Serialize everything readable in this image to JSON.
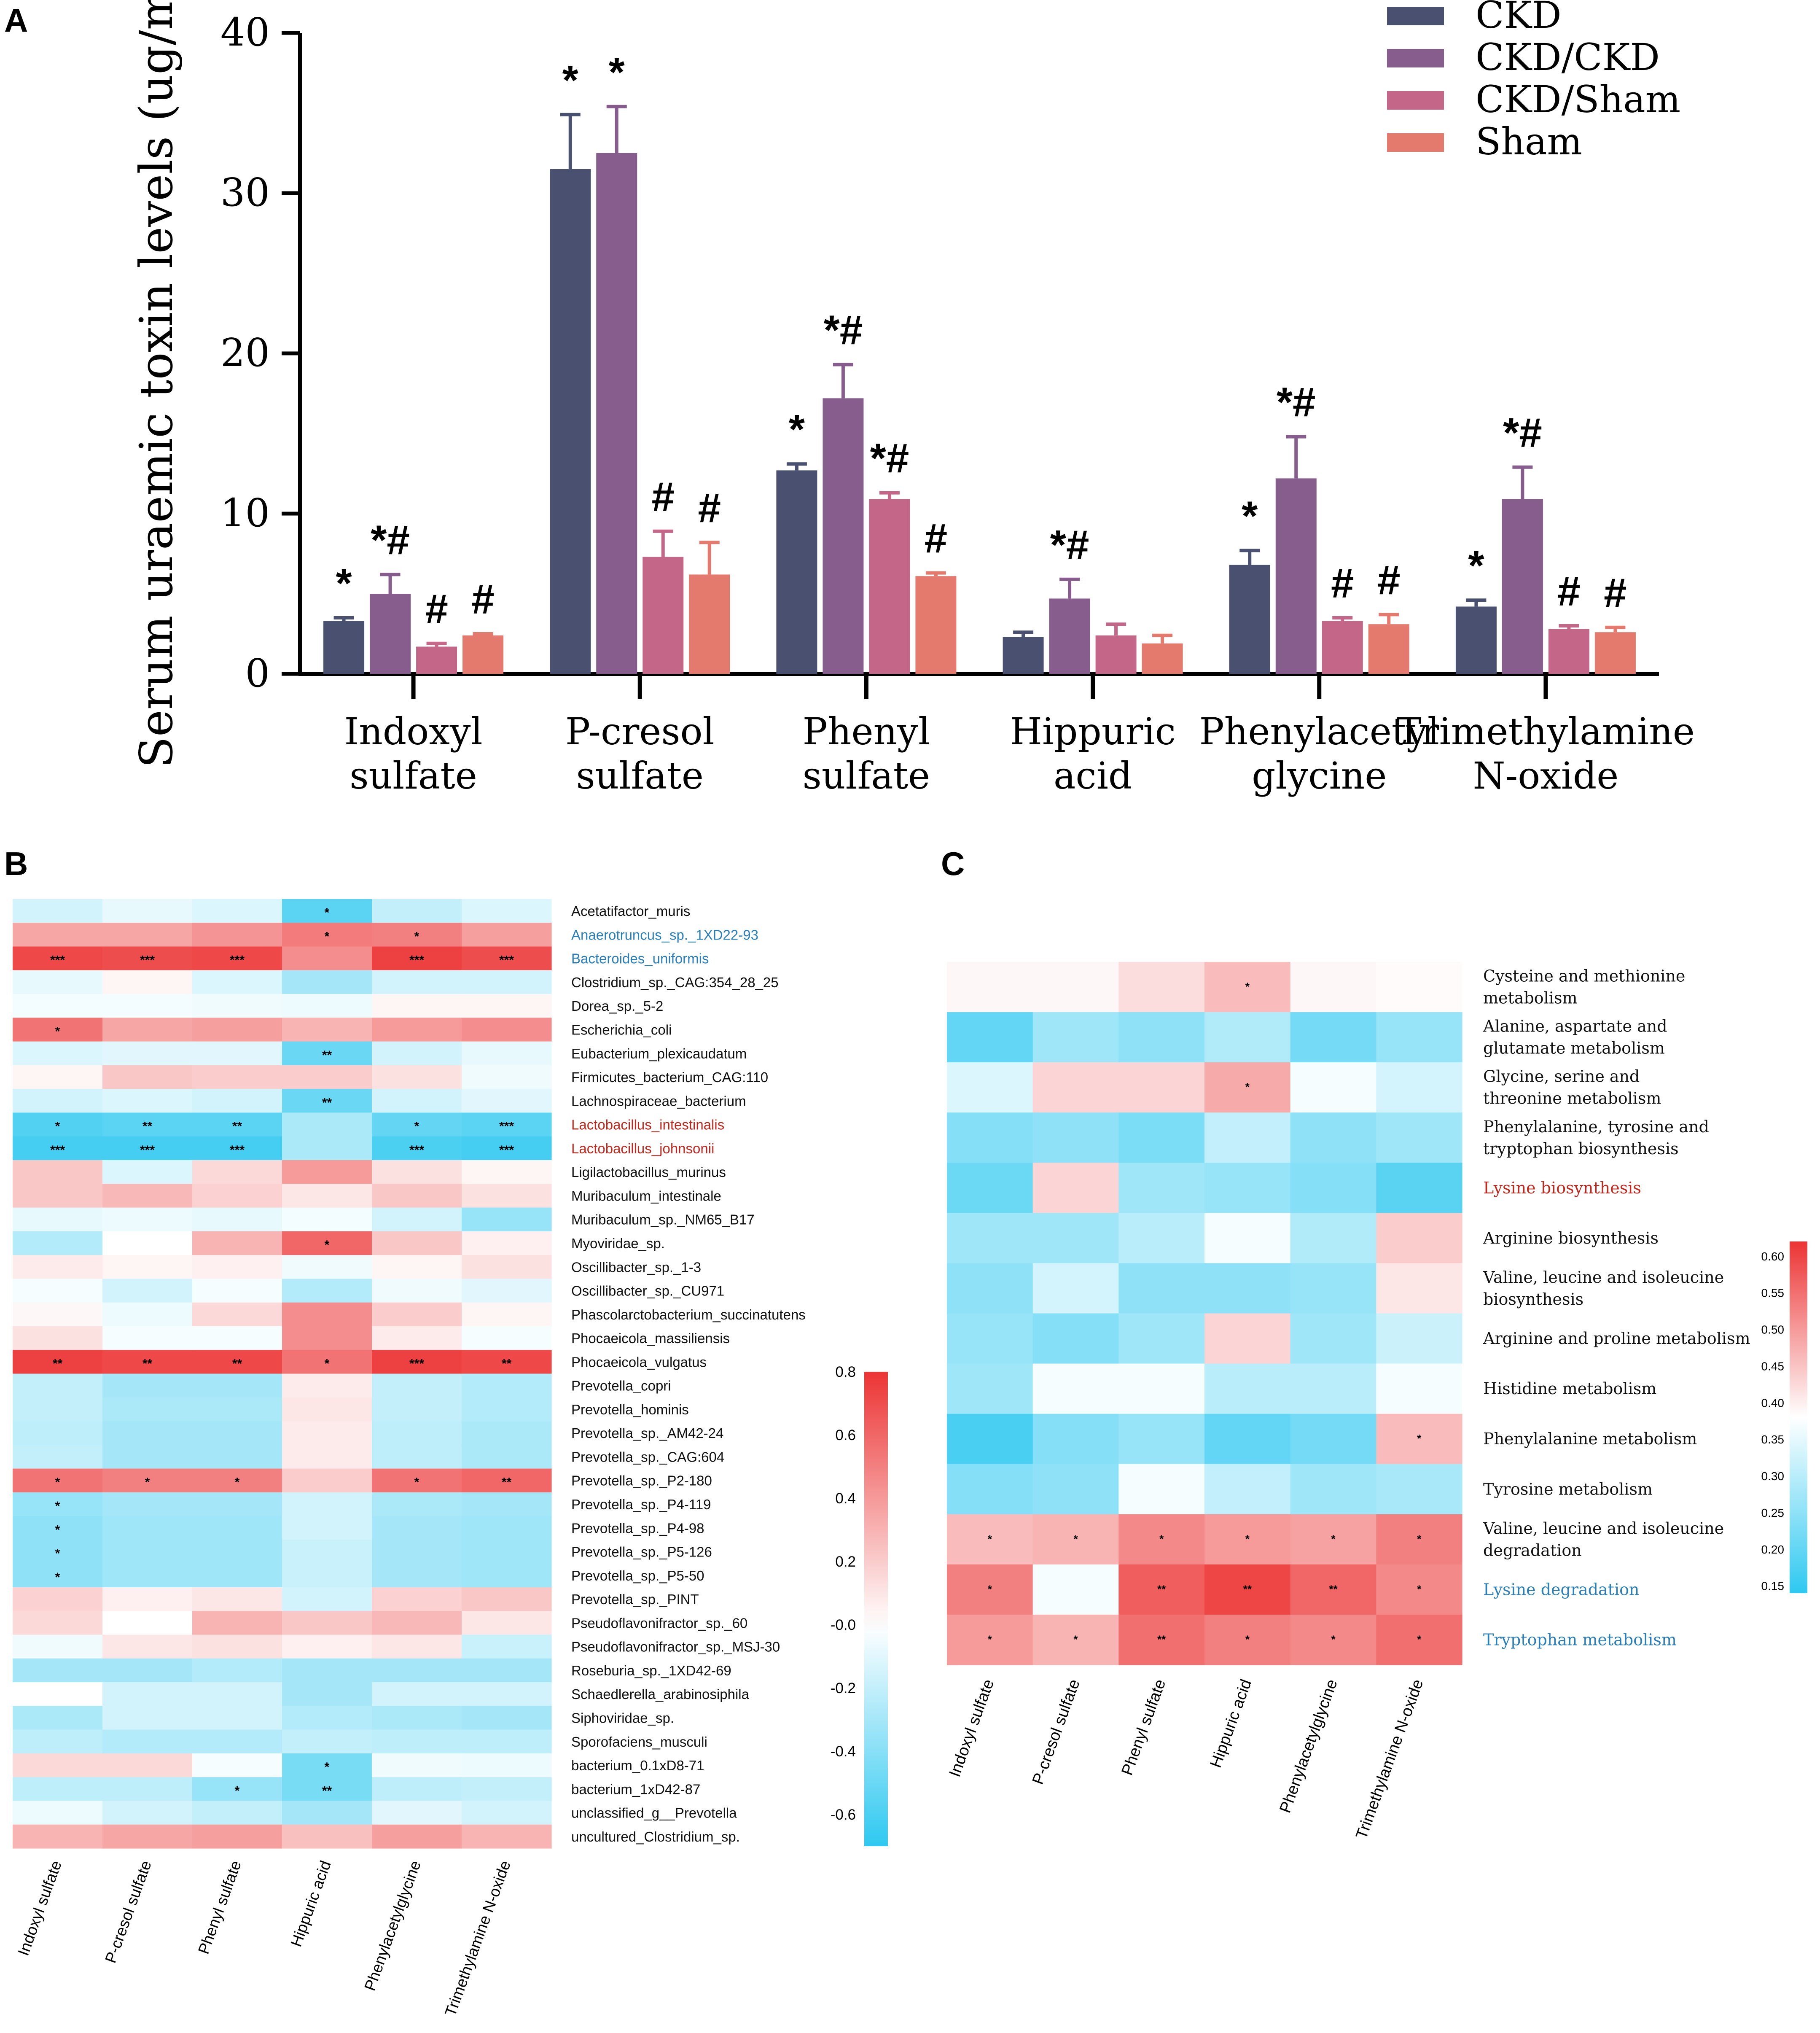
{
  "chart_data": [
    {
      "panel": "A",
      "type": "bar",
      "title": "",
      "xlabel": "",
      "ylabel": "Serum uraemic toxin levels (ug/mL)",
      "ylim": [
        0,
        40
      ],
      "yticks": [
        "0",
        "10",
        "20",
        "30",
        "40"
      ],
      "categories": [
        [
          "Indoxyl",
          "sulfate"
        ],
        [
          "P-cresol",
          "sulfate"
        ],
        [
          "Phenyl",
          "sulfate"
        ],
        [
          "Hippuric",
          "acid"
        ],
        [
          "Phenylacetyl",
          "glycine"
        ],
        [
          "Trimethylamine",
          "N-oxide"
        ]
      ],
      "series": [
        {
          "name": "CKD",
          "color": "#4a5170",
          "values": [
            3.3,
            31.5,
            12.7,
            2.3,
            6.8,
            4.2
          ],
          "errors": [
            0.2,
            3.4,
            0.4,
            0.3,
            0.9,
            0.4
          ],
          "marks": [
            "*",
            "*",
            "*",
            "",
            "*",
            "*"
          ]
        },
        {
          "name": "CKD/CKD",
          "color": "#875d8e",
          "values": [
            5.0,
            32.5,
            17.2,
            4.7,
            12.2,
            10.9
          ],
          "errors": [
            1.2,
            2.9,
            2.1,
            1.2,
            2.6,
            2.0
          ],
          "marks": [
            "*#",
            "*",
            "*#",
            "*#",
            "*#",
            "*#"
          ]
        },
        {
          "name": "CKD/Sham",
          "color": "#c46688",
          "values": [
            1.7,
            7.3,
            10.9,
            2.4,
            3.3,
            2.8
          ],
          "errors": [
            0.2,
            1.6,
            0.4,
            0.7,
            0.2,
            0.2
          ],
          "marks": [
            "#",
            "#",
            "*#",
            "",
            "#",
            "#"
          ]
        },
        {
          "name": "Sham",
          "color": "#e4796e",
          "values": [
            2.4,
            6.2,
            6.1,
            1.9,
            3.1,
            2.6
          ],
          "errors": [
            0.1,
            2.0,
            0.2,
            0.5,
            0.6,
            0.3
          ],
          "marks": [
            "#",
            "#",
            "#",
            "",
            "#",
            "#"
          ]
        }
      ],
      "legend_position": "top-right"
    },
    {
      "panel": "B",
      "type": "heatmap",
      "columns": [
        "Indoxyl sulfate",
        "P-cresol sulfate",
        "Phenyl sulfate",
        "Hippuric acid",
        "Phenylacetylglycine",
        "Trimethylamine N-oxide"
      ],
      "rows": [
        "Acetatifactor_muris",
        "Anaerotruncus_sp._1XD22-93",
        "Bacteroides_uniformis",
        "Clostridium_sp._CAG:354_28_25",
        "Dorea_sp._5-2",
        "Escherichia_coli",
        "Eubacterium_plexicaudatum",
        "Firmicutes_bacterium_CAG:110",
        "Lachnospiraceae_bacterium",
        "Lactobacillus_intestinalis",
        "Lactobacillus_johnsonii",
        "Ligilactobacillus_murinus",
        "Muribaculum_intestinale",
        "Muribaculum_sp._NM65_B17",
        "Myoviridae_sp.",
        "Oscillibacter_sp._1-3",
        "Oscillibacter_sp._CU971",
        "Phascolarctobacterium_succinatutens",
        "Phocaeicola_massiliensis",
        "Phocaeicola_vulgatus",
        "Prevotella_copri",
        "Prevotella_hominis",
        "Prevotella_sp._AM42-24",
        "Prevotella_sp._CAG:604",
        "Prevotella_sp._P2-180",
        "Prevotella_sp._P4-119",
        "Prevotella_sp._P4-98",
        "Prevotella_sp._P5-126",
        "Prevotella_sp._P5-50",
        "Prevotella_sp._PINT",
        "Pseudoflavonifractor_sp._60",
        "Pseudoflavonifractor_sp._MSJ-30",
        "Roseburia_sp._1XD42-69",
        "Schaedlerella_arabinosiphila",
        "Siphoviridae_sp.",
        "Sporofaciens_musculi",
        "bacterium_0.1xD8-71",
        "bacterium_1xD42-87",
        "unclassified_g__Prevotella",
        "uncultured_Clostridium_sp."
      ],
      "row_colors": {
        "Anaerotruncus_sp._1XD22-93": "#2b7fb8",
        "Bacteroides_uniformis": "#2b7fb8",
        "Lactobacillus_intestinalis": "#c0281e",
        "Lactobacillus_johnsonii": "#c0281e"
      },
      "values": [
        [
          -0.15,
          -0.08,
          -0.12,
          -0.55,
          -0.2,
          -0.12
        ],
        [
          0.35,
          0.35,
          0.42,
          0.52,
          0.5,
          0.38
        ],
        [
          0.72,
          0.7,
          0.72,
          0.45,
          0.75,
          0.7
        ],
        [
          -0.08,
          0.04,
          -0.12,
          -0.3,
          -0.15,
          -0.15
        ],
        [
          -0.04,
          -0.04,
          -0.05,
          -0.06,
          0.04,
          0.04
        ],
        [
          0.55,
          0.35,
          0.38,
          0.3,
          0.4,
          0.45
        ],
        [
          -0.12,
          -0.1,
          -0.1,
          -0.5,
          -0.15,
          -0.08
        ],
        [
          0.04,
          0.22,
          0.2,
          0.2,
          0.12,
          -0.05
        ],
        [
          -0.15,
          -0.12,
          -0.15,
          -0.5,
          -0.15,
          -0.1
        ],
        [
          -0.58,
          -0.55,
          -0.55,
          -0.28,
          -0.52,
          -0.55
        ],
        [
          -0.62,
          -0.62,
          -0.62,
          -0.28,
          -0.6,
          -0.62
        ],
        [
          0.22,
          -0.12,
          0.15,
          0.4,
          0.12,
          0.04
        ],
        [
          0.22,
          0.28,
          0.18,
          0.1,
          0.22,
          0.12
        ],
        [
          -0.08,
          -0.06,
          -0.08,
          -0.04,
          -0.15,
          -0.35
        ],
        [
          -0.25,
          0.0,
          0.3,
          0.6,
          0.22,
          0.06
        ],
        [
          0.08,
          0.04,
          0.06,
          -0.05,
          0.04,
          0.12
        ],
        [
          -0.03,
          -0.15,
          -0.03,
          -0.25,
          -0.05,
          -0.1
        ],
        [
          0.03,
          -0.06,
          0.15,
          0.45,
          0.2,
          0.04
        ],
        [
          0.12,
          -0.03,
          -0.03,
          0.45,
          0.08,
          -0.03
        ],
        [
          0.75,
          0.72,
          0.72,
          0.55,
          0.75,
          0.72
        ],
        [
          -0.2,
          -0.3,
          -0.3,
          0.08,
          -0.2,
          -0.25
        ],
        [
          -0.2,
          -0.28,
          -0.28,
          0.1,
          -0.2,
          -0.25
        ],
        [
          -0.22,
          -0.3,
          -0.3,
          0.08,
          -0.22,
          -0.28
        ],
        [
          -0.2,
          -0.3,
          -0.3,
          0.08,
          -0.22,
          -0.28
        ],
        [
          0.55,
          0.5,
          0.5,
          0.2,
          0.55,
          0.6
        ],
        [
          -0.35,
          -0.3,
          -0.3,
          -0.15,
          -0.28,
          -0.3
        ],
        [
          -0.38,
          -0.32,
          -0.32,
          -0.15,
          -0.3,
          -0.32
        ],
        [
          -0.38,
          -0.32,
          -0.32,
          -0.18,
          -0.3,
          -0.32
        ],
        [
          -0.38,
          -0.32,
          -0.32,
          -0.18,
          -0.3,
          -0.32
        ],
        [
          0.18,
          0.06,
          0.1,
          -0.15,
          0.18,
          0.22
        ],
        [
          0.15,
          0.0,
          0.3,
          0.22,
          0.28,
          0.1
        ],
        [
          -0.05,
          0.1,
          0.12,
          0.06,
          0.1,
          -0.18
        ],
        [
          -0.3,
          -0.3,
          -0.25,
          -0.3,
          -0.3,
          -0.3
        ],
        [
          0.0,
          -0.15,
          -0.15,
          -0.3,
          -0.15,
          -0.15
        ],
        [
          -0.28,
          -0.15,
          -0.15,
          -0.25,
          -0.28,
          -0.3
        ],
        [
          -0.22,
          -0.25,
          -0.25,
          -0.2,
          -0.22,
          -0.22
        ],
        [
          0.15,
          0.15,
          -0.03,
          -0.45,
          -0.05,
          -0.06
        ],
        [
          -0.22,
          -0.22,
          -0.35,
          -0.45,
          -0.22,
          -0.2
        ],
        [
          -0.06,
          -0.15,
          -0.2,
          -0.3,
          -0.1,
          -0.15
        ],
        [
          0.3,
          0.35,
          0.38,
          0.25,
          0.38,
          0.3
        ]
      ],
      "stars": [
        [
          "",
          "",
          "",
          "*",
          "",
          ""
        ],
        [
          "",
          "",
          "",
          "*",
          "*",
          ""
        ],
        [
          "***",
          "***",
          "***",
          "",
          "***",
          "***"
        ],
        [
          "",
          "",
          "",
          "",
          "",
          ""
        ],
        [
          "",
          "",
          "",
          "",
          "",
          ""
        ],
        [
          "*",
          "",
          "",
          "",
          "",
          ""
        ],
        [
          "",
          "",
          "",
          "**",
          "",
          ""
        ],
        [
          "",
          "",
          "",
          "",
          "",
          ""
        ],
        [
          "",
          "",
          "",
          "**",
          "",
          ""
        ],
        [
          "*",
          "**",
          "**",
          "",
          "*",
          "***"
        ],
        [
          "***",
          "***",
          "***",
          "",
          "***",
          "***"
        ],
        [
          "",
          "",
          "",
          "",
          "",
          ""
        ],
        [
          "",
          "",
          "",
          "",
          "",
          ""
        ],
        [
          "",
          "",
          "",
          "",
          "",
          ""
        ],
        [
          "",
          "",
          "",
          "*",
          "",
          ""
        ],
        [
          "",
          "",
          "",
          "",
          "",
          ""
        ],
        [
          "",
          "",
          "",
          "",
          "",
          ""
        ],
        [
          "",
          "",
          "",
          "",
          "",
          ""
        ],
        [
          "",
          "",
          "",
          "",
          "",
          ""
        ],
        [
          "**",
          "**",
          "**",
          "*",
          "***",
          "**"
        ],
        [
          "",
          "",
          "",
          "",
          "",
          ""
        ],
        [
          "",
          "",
          "",
          "",
          "",
          ""
        ],
        [
          "",
          "",
          "",
          "",
          "",
          ""
        ],
        [
          "",
          "",
          "",
          "",
          "",
          ""
        ],
        [
          "*",
          "*",
          "*",
          "",
          "*",
          "**"
        ],
        [
          "*",
          "",
          "",
          "",
          "",
          ""
        ],
        [
          "*",
          "",
          "",
          "",
          "",
          ""
        ],
        [
          "*",
          "",
          "",
          "",
          "",
          ""
        ],
        [
          "*",
          "",
          "",
          "",
          "",
          ""
        ],
        [
          "",
          "",
          "",
          "",
          "",
          ""
        ],
        [
          "",
          "",
          "",
          "",
          "",
          ""
        ],
        [
          "",
          "",
          "",
          "",
          "",
          ""
        ],
        [
          "",
          "",
          "",
          "",
          "",
          ""
        ],
        [
          "",
          "",
          "",
          "",
          "",
          ""
        ],
        [
          "",
          "",
          "",
          "",
          "",
          ""
        ],
        [
          "",
          "",
          "",
          "",
          "",
          ""
        ],
        [
          "",
          "",
          "",
          "*",
          "",
          ""
        ],
        [
          "",
          "",
          "*",
          "**",
          "",
          ""
        ],
        [
          "",
          "",
          "",
          "",
          "",
          ""
        ],
        [
          "",
          "",
          "",
          "",
          "",
          ""
        ]
      ],
      "colorbar": {
        "min": -0.7,
        "max": 0.8,
        "ticks": [
          0.8,
          0.6,
          0.4,
          0.2,
          -0.0,
          -0.2,
          -0.4,
          -0.6
        ],
        "tick_labels": [
          "0.8",
          "0.6",
          "0.4",
          "0.2",
          "-0.0",
          "-0.2",
          "-0.4",
          "-0.6"
        ]
      }
    },
    {
      "panel": "C",
      "type": "heatmap",
      "columns": [
        "Indoxyl sulfate",
        "P-cresol sulfate",
        "Phenyl sulfate",
        "Hippuric acid",
        "Phenylacetylglycine",
        "Trimethylamine N-oxide"
      ],
      "rows": [
        [
          "Cysteine and methionine",
          "metabolism"
        ],
        [
          "Alanine, aspartate and",
          "glutamate metabolism"
        ],
        [
          "Glycine, serine and",
          "threonine metabolism"
        ],
        [
          "Phenylalanine, tyrosine and",
          "tryptophan biosynthesis"
        ],
        [
          "Lysine biosynthesis"
        ],
        [
          "Arginine biosynthesis"
        ],
        [
          "Valine, leucine and isoleucine",
          "biosynthesis"
        ],
        [
          "Arginine and proline metabolism"
        ],
        [
          "Histidine metabolism"
        ],
        [
          "Phenylalanine metabolism"
        ],
        [
          "Tyrosine metabolism"
        ],
        [
          "Valine, leucine and isoleucine",
          "degradation"
        ],
        [
          "Lysine degradation"
        ],
        [
          "Tryptophan metabolism"
        ]
      ],
      "row_colors": [
        "",
        "",
        "",
        "",
        "#c0281e",
        "",
        "",
        "",
        "",
        "",
        "",
        "",
        "#2b7fb8",
        "#2b7fb8"
      ],
      "values": [
        [
          0.39,
          0.39,
          0.42,
          0.46,
          0.39,
          0.385
        ],
        [
          0.2,
          0.27,
          0.25,
          0.29,
          0.22,
          0.26
        ],
        [
          0.34,
          0.43,
          0.43,
          0.48,
          0.37,
          0.33
        ],
        [
          0.24,
          0.25,
          0.23,
          0.31,
          0.25,
          0.27
        ],
        [
          0.21,
          0.43,
          0.27,
          0.26,
          0.24,
          0.19
        ],
        [
          0.27,
          0.27,
          0.3,
          0.37,
          0.29,
          0.44
        ],
        [
          0.25,
          0.33,
          0.25,
          0.25,
          0.26,
          0.41
        ],
        [
          0.26,
          0.24,
          0.27,
          0.43,
          0.27,
          0.32
        ],
        [
          0.27,
          0.37,
          0.37,
          0.3,
          0.3,
          0.37
        ],
        [
          0.17,
          0.24,
          0.26,
          0.2,
          0.22,
          0.46
        ],
        [
          0.24,
          0.25,
          0.37,
          0.31,
          0.27,
          0.28
        ],
        [
          0.46,
          0.47,
          0.52,
          0.5,
          0.49,
          0.53
        ],
        [
          0.53,
          0.37,
          0.57,
          0.6,
          0.56,
          0.52
        ],
        [
          0.5,
          0.47,
          0.55,
          0.53,
          0.52,
          0.55
        ]
      ],
      "stars": [
        [
          "",
          "",
          "",
          "*",
          "",
          ""
        ],
        [
          "",
          "",
          "",
          "",
          "",
          ""
        ],
        [
          "",
          "",
          "",
          "*",
          "",
          ""
        ],
        [
          "",
          "",
          "",
          "",
          "",
          ""
        ],
        [
          "",
          "",
          "",
          "",
          "",
          ""
        ],
        [
          "",
          "",
          "",
          "",
          "",
          ""
        ],
        [
          "",
          "",
          "",
          "",
          "",
          ""
        ],
        [
          "",
          "",
          "",
          "",
          "",
          ""
        ],
        [
          "",
          "",
          "",
          "",
          "",
          ""
        ],
        [
          "",
          "",
          "",
          "",
          "",
          "*"
        ],
        [
          "",
          "",
          "",
          "",
          "",
          ""
        ],
        [
          "*",
          "*",
          "*",
          "*",
          "*",
          "*"
        ],
        [
          "*",
          "",
          "**",
          "**",
          "**",
          "*"
        ],
        [
          "*",
          "*",
          "**",
          "*",
          "*",
          "*"
        ]
      ],
      "colorbar": {
        "min": 0.14,
        "max": 0.62,
        "ticks": [
          0.6,
          0.55,
          0.5,
          0.45,
          0.4,
          0.35,
          0.3,
          0.25,
          0.2,
          0.15
        ],
        "tick_labels": [
          "0.60",
          "0.55",
          "0.50",
          "0.45",
          "0.40",
          "0.35",
          "0.30",
          "0.25",
          "0.20",
          "0.15"
        ]
      }
    }
  ],
  "panel_labels": {
    "a": "A",
    "b": "B",
    "c": "C"
  }
}
